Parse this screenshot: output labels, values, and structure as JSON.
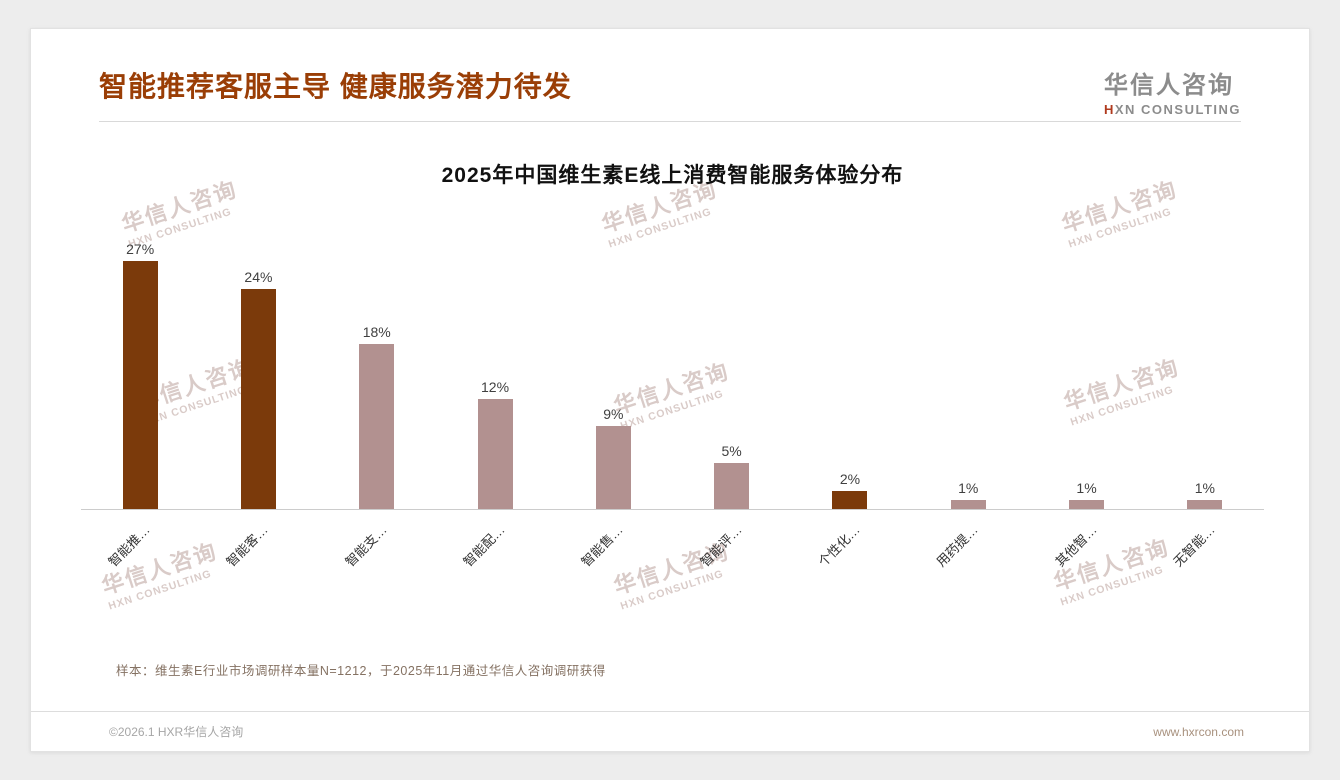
{
  "page": {
    "title": "智能推荐客服主导 健康服务潜力待发",
    "logo": {
      "name": "华信人咨询",
      "sub_prefix": "H",
      "sub_rest": "XN CONSULTING"
    },
    "note": "样本：维生素E行业市场调研样本量N=1212，于2025年11月通过华信人咨询调研获得",
    "footer_left": "©2026.1 HXR华信人咨询",
    "footer_right": "www.hxrcon.com"
  },
  "watermark": {
    "line1": "华信人咨询",
    "line2": "HXN CONSULTING"
  },
  "colors": {
    "accent": "#9a3e06",
    "bar_dark": "#7b3a0b",
    "bar_light": "#b29190",
    "watermark": "#b1938d"
  },
  "chart_data": {
    "type": "bar",
    "title": "2025年中国维生素E线上消费智能服务体验分布",
    "categories": [
      "智能推…",
      "智能客…",
      "智能支…",
      "智能配…",
      "智能售…",
      "智能评…",
      "个性化…",
      "用药提…",
      "其他智…",
      "无智能…"
    ],
    "values": [
      27,
      24,
      18,
      12,
      9,
      5,
      2,
      1,
      1,
      1
    ],
    "labels": [
      "27%",
      "24%",
      "18%",
      "12%",
      "9%",
      "5%",
      "2%",
      "1%",
      "1%",
      "1%"
    ],
    "bar_colors": [
      "#7b3a0b",
      "#7b3a0b",
      "#b29190",
      "#b29190",
      "#b29190",
      "#b29190",
      "#7b3a0b",
      "#b29190",
      "#b29190",
      "#b29190"
    ],
    "ylim": [
      0,
      30
    ],
    "grid": false,
    "legend": false,
    "xlabel": "",
    "ylabel": ""
  }
}
